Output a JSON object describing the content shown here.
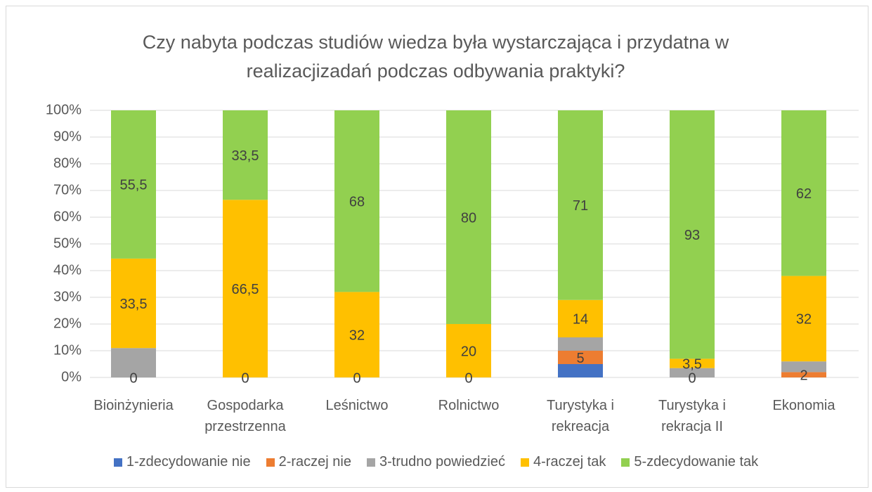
{
  "chart_data": {
    "type": "stacked_bar_100",
    "title": "Czy nabyta podczas studiów wiedza była wystarczająca i przydatna w realizacjizadań podczas odbywania praktyki?",
    "categories": [
      "Bioinżynieria",
      "Gospodarka przestrzenna",
      "Leśnictwo",
      "Rolnictwo",
      "Turystyka i rekreacja",
      "Turystyka i rekracja II",
      "Ekonomia"
    ],
    "series": [
      {
        "name": "1-zdecydowanie nie",
        "color": "#4472c4",
        "values": [
          0,
          0,
          0,
          0,
          5,
          0,
          0
        ]
      },
      {
        "name": "2-raczej nie",
        "color": "#ed7d31",
        "values": [
          0,
          0,
          0,
          0,
          5,
          0,
          2
        ],
        "value_labels": [
          "0",
          "0",
          "0",
          "0",
          "5",
          "0",
          "2"
        ]
      },
      {
        "name": "3-trudno powiedzieć",
        "color": "#a5a5a5",
        "values": [
          11,
          0,
          0,
          0,
          5,
          3.5,
          4
        ]
      },
      {
        "name": "4-raczej tak",
        "color": "#ffc000",
        "values": [
          33.5,
          66.5,
          32,
          20,
          14,
          3.5,
          32
        ],
        "value_labels": [
          "33,5",
          "66,5",
          "32",
          "20",
          "14",
          "3,5",
          "32"
        ]
      },
      {
        "name": "5-zdecydowanie tak",
        "color": "#92d050",
        "values": [
          55.5,
          33.5,
          68,
          80,
          71,
          93,
          62
        ],
        "value_labels": [
          "55,5",
          "33,5",
          "68",
          "80",
          "71",
          "93",
          "62"
        ]
      }
    ],
    "ylim": [
      0,
      100
    ],
    "yticks": [
      {
        "value": 0,
        "label": "0%"
      },
      {
        "value": 10,
        "label": "10%"
      },
      {
        "value": 20,
        "label": "20%"
      },
      {
        "value": 30,
        "label": "30%"
      },
      {
        "value": 40,
        "label": "40%"
      },
      {
        "value": 50,
        "label": "50%"
      },
      {
        "value": 60,
        "label": "60%"
      },
      {
        "value": 70,
        "label": "70%"
      },
      {
        "value": 80,
        "label": "80%"
      },
      {
        "value": 90,
        "label": "90%"
      },
      {
        "value": 100,
        "label": "100%"
      }
    ],
    "grid": true,
    "legend": "bottom"
  }
}
